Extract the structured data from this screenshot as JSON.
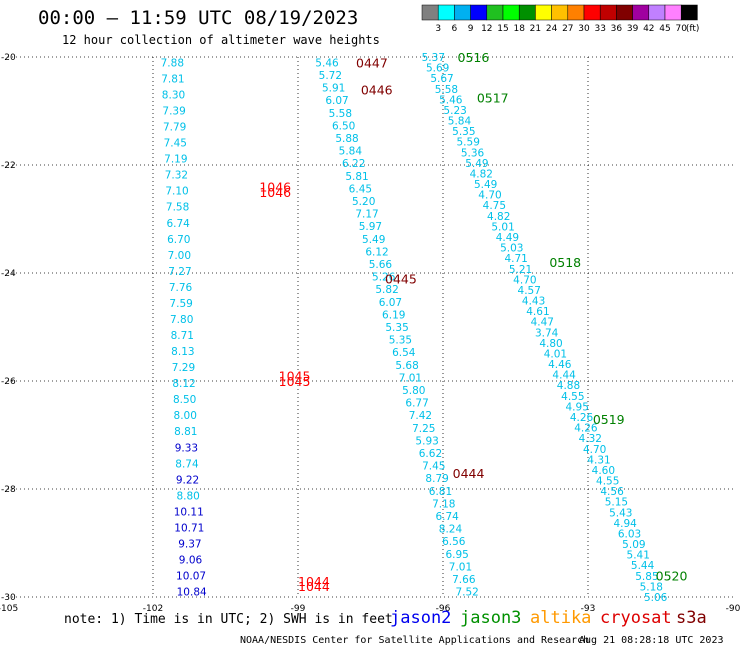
{
  "header": {
    "title": "00:00 – 11:59 UTC 08/19/2023",
    "subtitle": "12 hour collection of altimeter wave heights"
  },
  "colorbar": {
    "unit": "(ft)",
    "ticks": [
      "3",
      "6",
      "9",
      "12",
      "15",
      "18",
      "21",
      "24",
      "27",
      "30",
      "33",
      "36",
      "39",
      "42",
      "45",
      "70"
    ],
    "colors": [
      "#808080",
      "#00ffff",
      "#00b0f0",
      "#0000ff",
      "#20c020",
      "#00ff00",
      "#009000",
      "#ffff00",
      "#ffc000",
      "#ff8000",
      "#ff0000",
      "#c00000",
      "#800000",
      "#a000a0",
      "#c080ff",
      "#ff80ff",
      "#000000"
    ]
  },
  "footer": {
    "note": "note:  1) Time is in UTC;  2) SWH is in feet",
    "credit": "NOAA/NESDIS Center for Satellite Applications and Research",
    "timestamp": "Aug 21 08:28:18 UTC 2023",
    "satellites": [
      {
        "name": "jason2",
        "color": "#0000ee"
      },
      {
        "name": "jason3",
        "color": "#009000"
      },
      {
        "name": "altika",
        "color": "#ff9900"
      },
      {
        "name": "cryosat",
        "color": "#dd0000"
      },
      {
        "name": "s3a",
        "color": "#800000"
      }
    ]
  },
  "chart_data": {
    "type": "scatter",
    "xlim": [
      -105,
      -90
    ],
    "ylim": [
      -30,
      -20
    ],
    "x_ticks": [
      "-105",
      "-102",
      "-99",
      "-96",
      "-93",
      "-90"
    ],
    "y_ticks": [
      "-20",
      "-22",
      "-24",
      "-26",
      "-28",
      "-30"
    ],
    "grid": true,
    "colors": {
      "swh": "#00c0e8",
      "swh_high": "#0000cc",
      "cryosat": "#ff0000",
      "s3a": "#800000",
      "jason3": "#008000"
    },
    "tracks": [
      {
        "satellite": "s3a",
        "start": [
          -101.6,
          -20.1
        ],
        "end": [
          -101.2,
          -29.9
        ],
        "values": [
          "7.88",
          "7.81",
          "8.30",
          "7.39",
          "7.79",
          "7.45",
          "7.19",
          "7.32",
          "7.10",
          "7.58",
          "6.74",
          "6.70",
          "7.00",
          "7.27",
          "7.76",
          "7.59",
          "7.80",
          "8.71",
          "8.13",
          "7.29",
          "8.12",
          "8.50",
          "8.00",
          "8.81",
          "9.33",
          "8.74",
          "9.22",
          "8.80",
          "10.11",
          "10.71",
          "9.37",
          "9.06",
          "10.07",
          "10.84"
        ]
      },
      {
        "satellite": "s3a",
        "start": [
          -98.4,
          -20.1
        ],
        "end": [
          -95.5,
          -29.9
        ],
        "values": [
          "5.46",
          "5.72",
          "5.91",
          "6.07",
          "5.58",
          "6.50",
          "5.88",
          "5.84",
          "6.22",
          "5.81",
          "6.45",
          "5.20",
          "7.17",
          "5.97",
          "5.49",
          "6.12",
          "5.66",
          "5.26",
          "5.82",
          "6.07",
          "6.19",
          "5.35",
          "5.35",
          "6.54",
          "5.68",
          "7.01",
          "5.80",
          "6.77",
          "7.42",
          "7.25",
          "5.93",
          "6.62",
          "7.45",
          "8.79",
          "6.81",
          "7.18",
          "6.74",
          "8.24",
          "6.56",
          "6.95",
          "7.01",
          "7.66",
          "7.52"
        ]
      },
      {
        "satellite": "jason3",
        "start": [
          -96.2,
          -20.0
        ],
        "end": [
          -91.6,
          -30.0
        ],
        "values": [
          "5.37",
          "5.69",
          "5.67",
          "5.58",
          "5.46",
          "5.23",
          "5.84",
          "5.35",
          "5.59",
          "5.36",
          "5.49",
          "4.82",
          "5.49",
          "4.70",
          "4.75",
          "4.82",
          "5.01",
          "4.49",
          "5.03",
          "4.71",
          "5.21",
          "4.70",
          "4.57",
          "4.43",
          "4.61",
          "4.47",
          "3.74",
          "4.80",
          "4.01",
          "4.46",
          "4.44",
          "4.88",
          "4.55",
          "4.95",
          "4.26",
          "4.26",
          "4.32",
          "4.70",
          "4.31",
          "4.60",
          "4.55",
          "4.56",
          "5.15",
          "5.43",
          "4.94",
          "6.03",
          "5.09",
          "5.41",
          "5.44",
          "5.85",
          "5.18",
          "5.06"
        ]
      }
    ],
    "time_labels": [
      {
        "text": "0516",
        "lon": -95.7,
        "lat": -20.0,
        "color": "#008000"
      },
      {
        "text": "0517",
        "lon": -95.3,
        "lat": -20.75,
        "color": "#008000"
      },
      {
        "text": "0518",
        "lon": -93.8,
        "lat": -23.8,
        "color": "#008000"
      },
      {
        "text": "0519",
        "lon": -92.9,
        "lat": -26.7,
        "color": "#008000"
      },
      {
        "text": "0520",
        "lon": -91.6,
        "lat": -29.6,
        "color": "#008000"
      },
      {
        "text": "0447",
        "lon": -97.8,
        "lat": -20.1,
        "color": "#800000"
      },
      {
        "text": "0446",
        "lon": -97.7,
        "lat": -20.6,
        "color": "#800000"
      },
      {
        "text": "0445",
        "lon": -97.2,
        "lat": -24.1,
        "color": "#800000"
      },
      {
        "text": "0444",
        "lon": -95.8,
        "lat": -27.7,
        "color": "#800000"
      },
      {
        "text": "1046",
        "lon": -99.8,
        "lat": -22.4,
        "color": "#ff0000"
      },
      {
        "text": "1046",
        "lon": -99.8,
        "lat": -22.5,
        "color": "#ff0000"
      },
      {
        "text": "1045",
        "lon": -99.4,
        "lat": -25.9,
        "color": "#ff0000"
      },
      {
        "text": "1045",
        "lon": -99.4,
        "lat": -26.0,
        "color": "#ff0000"
      },
      {
        "text": "1044",
        "lon": -99.0,
        "lat": -29.7,
        "color": "#ff0000"
      },
      {
        "text": "1044",
        "lon": -99.0,
        "lat": -29.8,
        "color": "#ff0000"
      }
    ]
  }
}
